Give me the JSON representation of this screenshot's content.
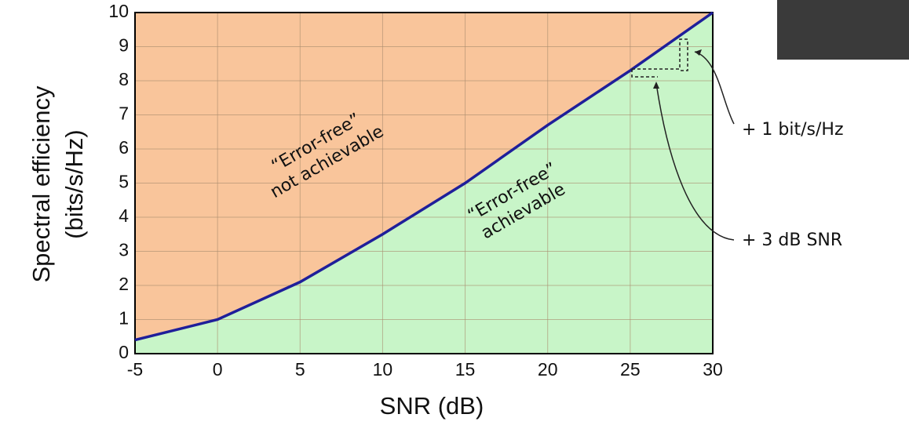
{
  "chart_data": {
    "type": "line",
    "x_label": "SNR (dB)",
    "y_label": [
      "Spectral efficiency",
      "(bits/s/Hz)"
    ],
    "x": [
      -5,
      0,
      5,
      10,
      15,
      20,
      25,
      30
    ],
    "values": [
      0.4,
      1.0,
      2.1,
      3.5,
      5.0,
      6.7,
      8.3,
      10
    ],
    "color": "#1f1f9a",
    "above_color": "#f9c59b",
    "below_color": "#c8f5c8",
    "xlim": [
      -5,
      30
    ],
    "ylim": [
      0,
      10
    ],
    "xticks": [
      -5,
      0,
      5,
      10,
      15,
      20,
      25,
      30
    ],
    "yticks": [
      0,
      1,
      2,
      3,
      4,
      5,
      6,
      7,
      8,
      9,
      10
    ],
    "grid": true,
    "annotations": [
      {
        "lines": [
          "“Error-free”",
          "not achievable"
        ]
      },
      {
        "lines": [
          "“Error-free”",
          "achievable"
        ]
      },
      {
        "lines": [
          "+ 1 bit/s/Hz"
        ]
      },
      {
        "lines": [
          "+ 3 dB SNR"
        ]
      }
    ]
  }
}
